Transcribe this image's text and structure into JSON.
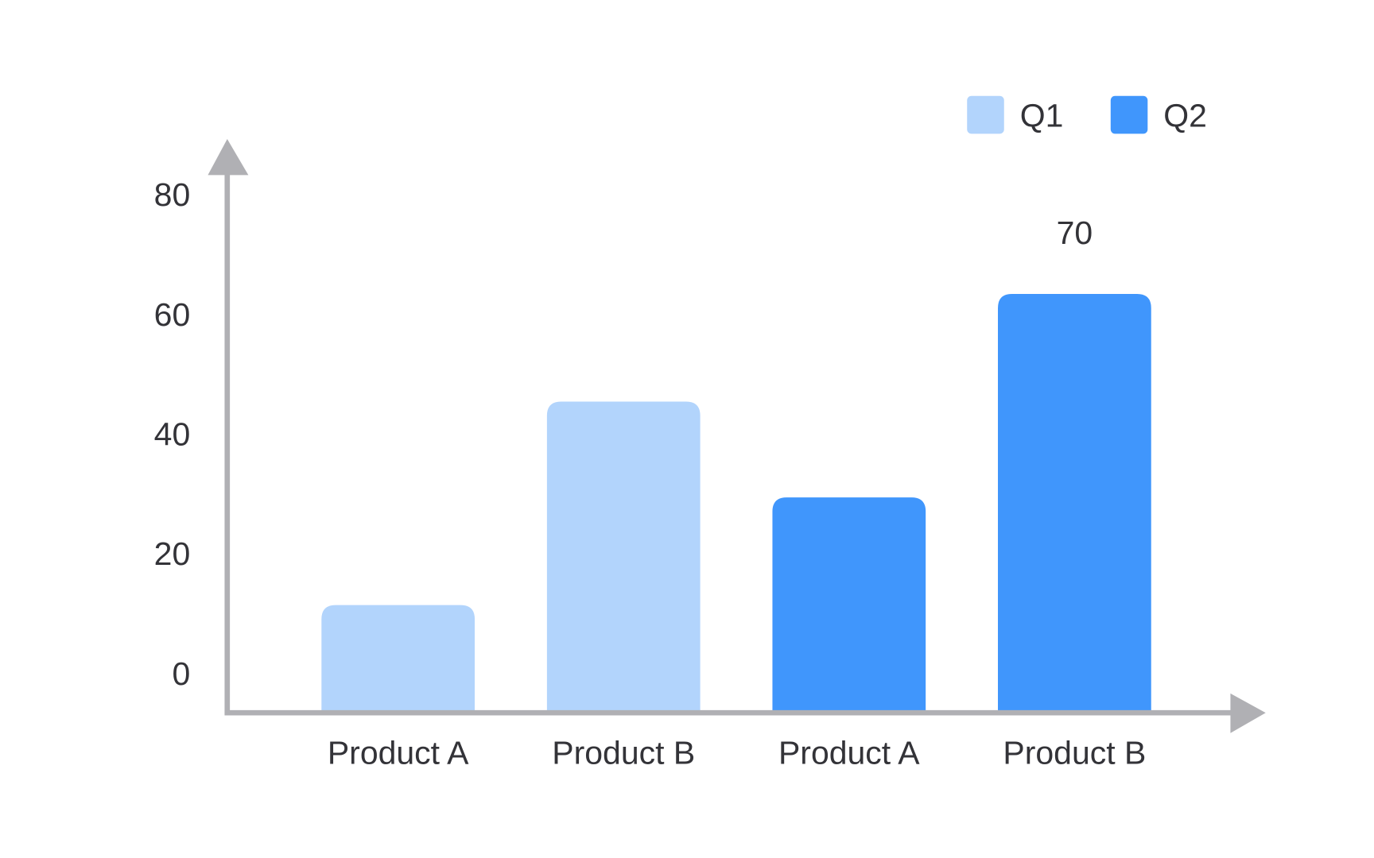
{
  "chart_data": {
    "type": "bar",
    "title": "",
    "xlabel": "",
    "ylabel": "",
    "categories": [
      "Product A",
      "Product B",
      "Product A",
      "Product B"
    ],
    "bars": [
      {
        "category": "Product A",
        "series": "Q1",
        "value": 18
      },
      {
        "category": "Product B",
        "series": "Q1",
        "value": 52
      },
      {
        "category": "Product A",
        "series": "Q2",
        "value": 36
      },
      {
        "category": "Product B",
        "series": "Q2",
        "value": 70
      }
    ],
    "series": [
      {
        "name": "Q1",
        "color": "#b2d4fc"
      },
      {
        "name": "Q2",
        "color": "#4096fc"
      }
    ],
    "yticks": [
      "0",
      "20",
      "40",
      "60",
      "80"
    ],
    "ylim": [
      0,
      80
    ],
    "data_labels": [
      {
        "bar_index": 3,
        "text": "70"
      }
    ],
    "grid": false,
    "legend_position": "top-right",
    "axis_color": "#b0b0b4",
    "text_color": "#333338"
  }
}
